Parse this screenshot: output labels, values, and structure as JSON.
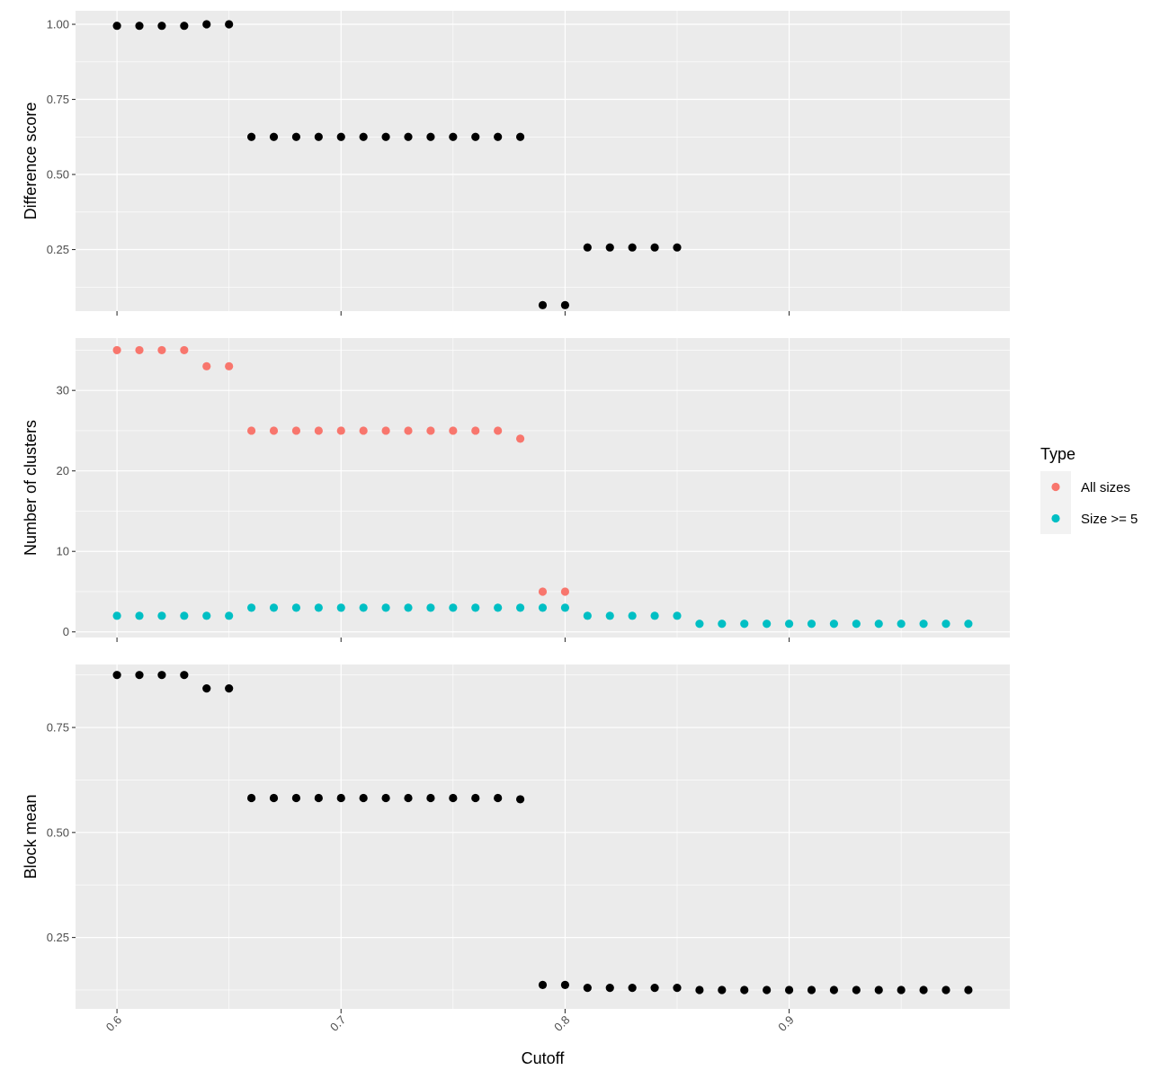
{
  "colors": {
    "panel_bg": "#ebebeb",
    "grid": "#ffffff",
    "black_points": "#000000",
    "all_sizes": "#f8766d",
    "size_ge_5": "#00bfc4",
    "legend_key_bg": "#f2f2f2"
  },
  "legend": {
    "title": "Type",
    "items": [
      {
        "label": "All sizes",
        "color": "#f8766d"
      },
      {
        "label": "Size >= 5",
        "color": "#00bfc4"
      }
    ]
  },
  "xaxis": {
    "title": "Cutoff",
    "ticks": [
      0.6,
      0.7,
      0.8,
      0.9
    ],
    "tick_labels": [
      "0.6",
      "0.7",
      "0.8",
      "0.9"
    ],
    "range": [
      0.5815,
      0.9985
    ]
  },
  "chart_data": [
    {
      "type": "scatter",
      "ylabel": "Difference score",
      "ylim": [
        0.045,
        1.045
      ],
      "yticks": [
        0.25,
        0.5,
        0.75,
        1.0
      ],
      "ytick_labels": [
        "0.25",
        "0.50",
        "0.75",
        "1.00"
      ],
      "grid": true,
      "series": [
        {
          "color": "#000000",
          "x": [
            0.6,
            0.61,
            0.62,
            0.63,
            0.64,
            0.65,
            0.66,
            0.67,
            0.68,
            0.69,
            0.7,
            0.71,
            0.72,
            0.73,
            0.74,
            0.75,
            0.76,
            0.77,
            0.78,
            0.79,
            0.8,
            0.81,
            0.82,
            0.83,
            0.84,
            0.85
          ],
          "y": [
            0.995,
            0.995,
            0.995,
            0.995,
            1.0,
            1.0,
            0.625,
            0.625,
            0.625,
            0.625,
            0.625,
            0.625,
            0.625,
            0.625,
            0.625,
            0.625,
            0.625,
            0.625,
            0.625,
            0.065,
            0.065,
            0.257,
            0.257,
            0.257,
            0.257,
            0.257
          ]
        }
      ]
    },
    {
      "type": "scatter",
      "ylabel": "Number of clusters",
      "ylim": [
        -0.7,
        36.5
      ],
      "yticks": [
        0,
        10,
        20,
        30
      ],
      "ytick_labels": [
        "0",
        "10",
        "20",
        "30"
      ],
      "grid": true,
      "series": [
        {
          "name": "All sizes",
          "color": "#f8766d",
          "x": [
            0.6,
            0.61,
            0.62,
            0.63,
            0.64,
            0.65,
            0.66,
            0.67,
            0.68,
            0.69,
            0.7,
            0.71,
            0.72,
            0.73,
            0.74,
            0.75,
            0.76,
            0.77,
            0.78,
            0.79,
            0.8
          ],
          "y": [
            35,
            35,
            35,
            35,
            33,
            33,
            25,
            25,
            25,
            25,
            25,
            25,
            25,
            25,
            25,
            25,
            25,
            25,
            24,
            5,
            5
          ]
        },
        {
          "name": "Size >= 5",
          "color": "#00bfc4",
          "x": [
            0.6,
            0.61,
            0.62,
            0.63,
            0.64,
            0.65,
            0.66,
            0.67,
            0.68,
            0.69,
            0.7,
            0.71,
            0.72,
            0.73,
            0.74,
            0.75,
            0.76,
            0.77,
            0.78,
            0.79,
            0.8,
            0.81,
            0.82,
            0.83,
            0.84,
            0.85,
            0.86,
            0.87,
            0.88,
            0.89,
            0.9,
            0.91,
            0.92,
            0.93,
            0.94,
            0.95,
            0.96,
            0.97,
            0.98
          ],
          "y": [
            2,
            2,
            2,
            2,
            2,
            2,
            3,
            3,
            3,
            3,
            3,
            3,
            3,
            3,
            3,
            3,
            3,
            3,
            3,
            3,
            3,
            2,
            2,
            2,
            2,
            2,
            1,
            1,
            1,
            1,
            1,
            1,
            1,
            1,
            1,
            1,
            1,
            1,
            1
          ]
        }
      ]
    },
    {
      "type": "scatter",
      "ylabel": "Block mean",
      "ylim": [
        0.08,
        0.9
      ],
      "yticks": [
        0.25,
        0.5,
        0.75
      ],
      "ytick_labels": [
        "0.25",
        "0.50",
        "0.75"
      ],
      "grid": true,
      "series": [
        {
          "color": "#000000",
          "x": [
            0.6,
            0.61,
            0.62,
            0.63,
            0.64,
            0.65,
            0.66,
            0.67,
            0.68,
            0.69,
            0.7,
            0.71,
            0.72,
            0.73,
            0.74,
            0.75,
            0.76,
            0.77,
            0.78,
            0.79,
            0.8,
            0.81,
            0.82,
            0.83,
            0.84,
            0.85,
            0.86,
            0.87,
            0.88,
            0.89,
            0.9,
            0.91,
            0.92,
            0.93,
            0.94,
            0.95,
            0.96,
            0.97,
            0.98
          ],
          "y": [
            0.875,
            0.875,
            0.875,
            0.875,
            0.843,
            0.843,
            0.582,
            0.582,
            0.582,
            0.582,
            0.582,
            0.582,
            0.582,
            0.582,
            0.582,
            0.582,
            0.582,
            0.582,
            0.579,
            0.137,
            0.137,
            0.13,
            0.13,
            0.13,
            0.13,
            0.13,
            0.125,
            0.125,
            0.125,
            0.125,
            0.125,
            0.125,
            0.125,
            0.125,
            0.125,
            0.125,
            0.125,
            0.125,
            0.125
          ]
        }
      ]
    }
  ]
}
